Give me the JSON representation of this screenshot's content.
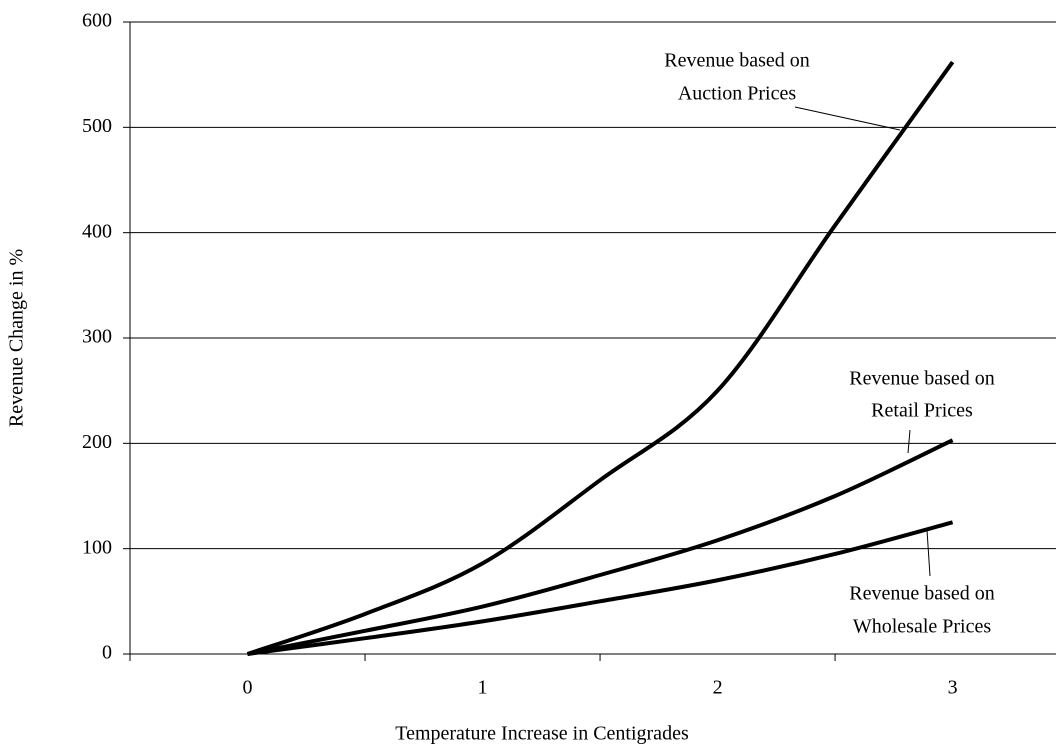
{
  "chart_data": {
    "type": "line",
    "xlabel": "Temperature Increase in Centigrades",
    "ylabel": "Revenue Change in %",
    "x": [
      0,
      0.5,
      1,
      1.5,
      2,
      2.5,
      3
    ],
    "series": [
      {
        "name": "Revenue based on Auction Prices",
        "color": "#000000",
        "values": [
          0,
          38,
          86,
          165,
          250,
          407,
          562
        ]
      },
      {
        "name": "Revenue based on Retail Prices",
        "color": "#000000",
        "values": [
          0,
          22,
          45,
          75,
          108,
          150,
          203
        ]
      },
      {
        "name": "Revenue based on Wholesale Prices",
        "color": "#000000",
        "values": [
          0,
          15,
          31,
          50,
          70,
          95,
          125
        ]
      }
    ],
    "annotations": [
      {
        "lines": [
          "Revenue based on",
          "Auction Prices"
        ]
      },
      {
        "lines": [
          "Revenue based on",
          "Retail Prices"
        ]
      },
      {
        "lines": [
          "Revenue based on",
          "Wholesale Prices"
        ]
      }
    ],
    "xlim": [
      -0.5,
      3.44
    ],
    "xticks": [
      0,
      1,
      2,
      3
    ],
    "xtick_marks": [
      -0.5,
      0.5,
      1.5,
      2.5
    ],
    "ylim": [
      0,
      600
    ],
    "yticks": [
      0,
      100,
      200,
      300,
      400,
      500,
      600
    ],
    "grid": true
  }
}
